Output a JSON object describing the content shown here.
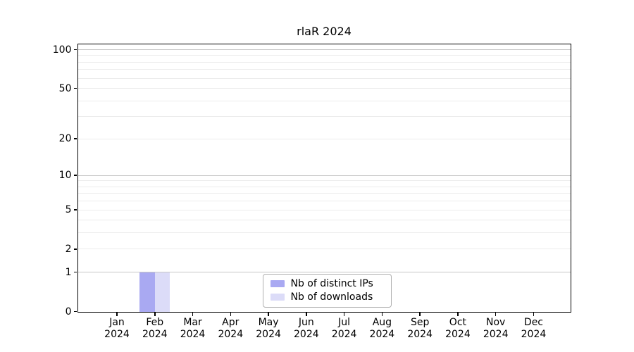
{
  "chart_data": {
    "type": "bar",
    "title": "rlaR 2024",
    "xlabel": "",
    "ylabel": "",
    "categories": [
      "Jan",
      "Feb",
      "Mar",
      "Apr",
      "May",
      "Jun",
      "Jul",
      "Aug",
      "Sep",
      "Oct",
      "Nov",
      "Dec"
    ],
    "year_label": "2024",
    "series": [
      {
        "name": "Nb of distinct IPs",
        "color": "#a9a9f2",
        "values": [
          0,
          1,
          0,
          0,
          0,
          0,
          0,
          0,
          0,
          0,
          0,
          0
        ]
      },
      {
        "name": "Nb of downloads",
        "color": "#dcdcf8",
        "values": [
          0,
          1,
          0,
          0,
          0,
          0,
          0,
          0,
          0,
          0,
          0,
          0
        ]
      }
    ],
    "yscale": "log1p",
    "ylim": [
      0,
      110
    ],
    "yticks": [
      0,
      1,
      2,
      5,
      10,
      20,
      50,
      100
    ],
    "grid": {
      "major": [
        1,
        10,
        100
      ],
      "minor": [
        2,
        3,
        4,
        5,
        6,
        7,
        8,
        9,
        20,
        30,
        40,
        50,
        60,
        70,
        80,
        90
      ]
    },
    "legend_position": "lower center",
    "colors": {
      "grid_major": "#c6c6c6",
      "grid_minor": "#ececec",
      "axis": "#000000",
      "background": "#ffffff",
      "legend_border": "#b0b0b0"
    }
  }
}
